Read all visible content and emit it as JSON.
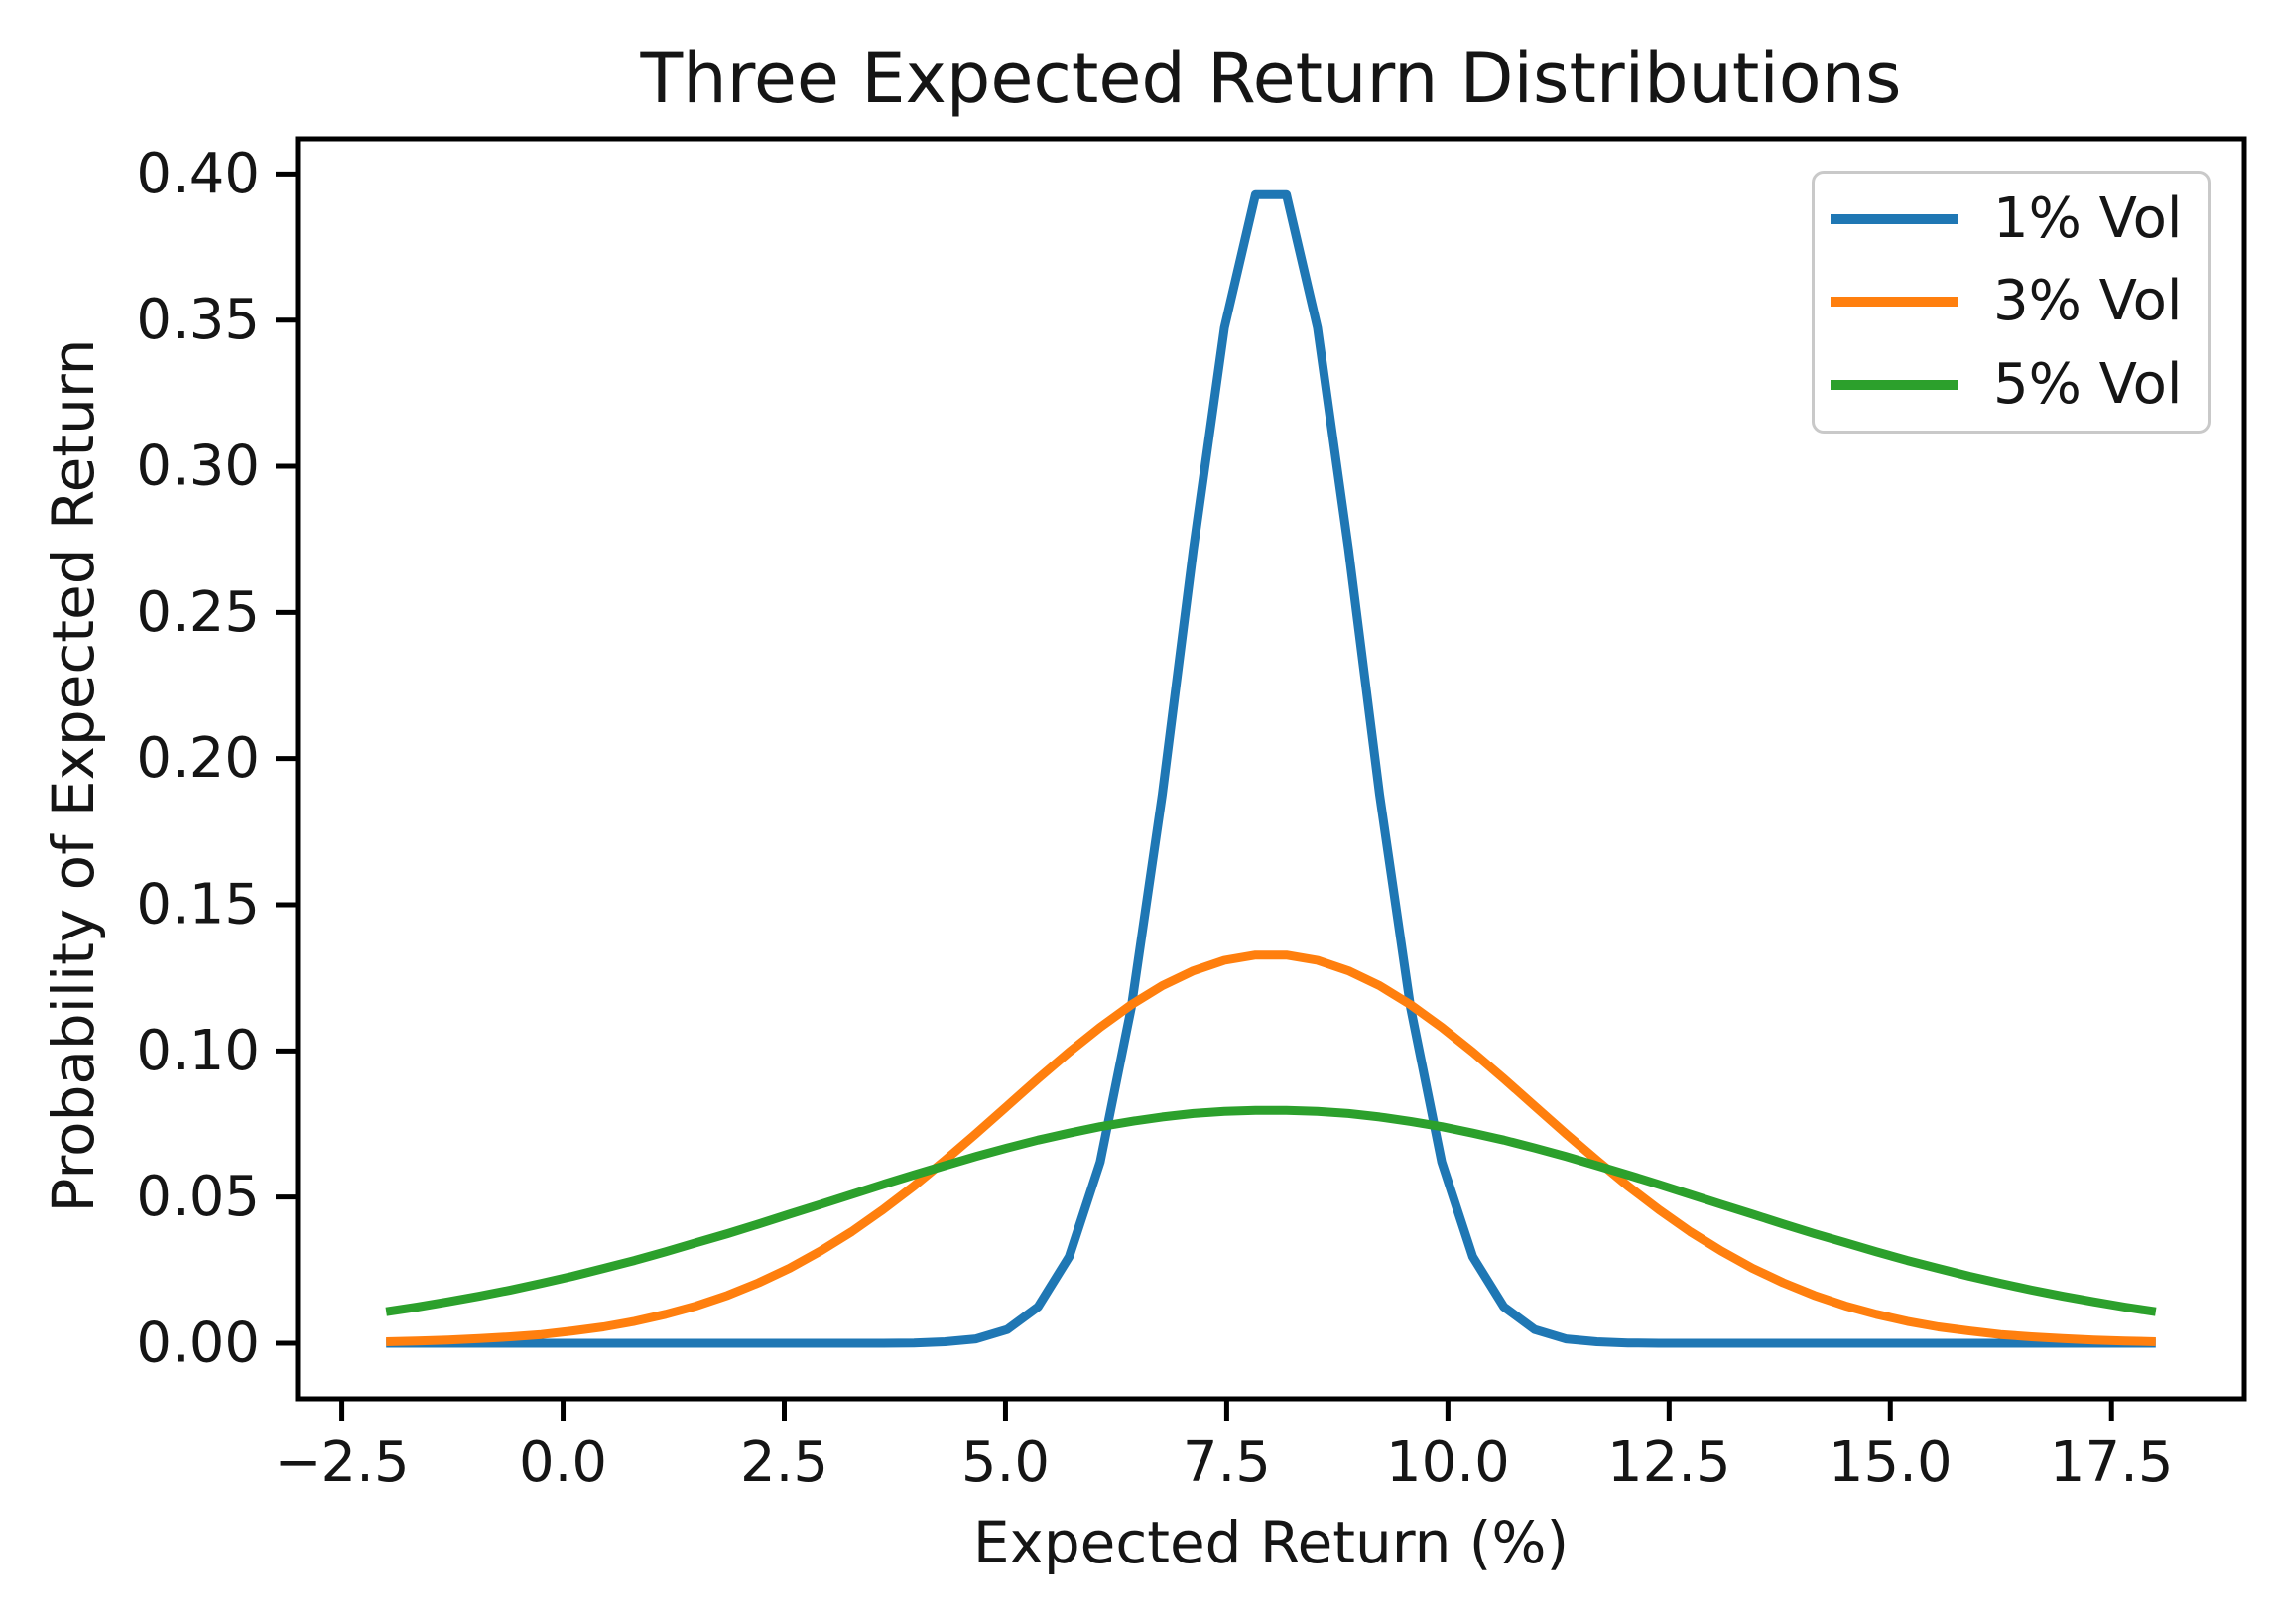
{
  "figure": {
    "background": "#ffffff",
    "text_color": "#151515",
    "axis_color": "#000000"
  },
  "chart_data": {
    "type": "line",
    "title": "Three Expected Return Distributions",
    "xlabel": "Expected Return (%)",
    "ylabel": "Probability of Expected Return",
    "xlim": [
      -3,
      19
    ],
    "ylim": [
      -0.019,
      0.412
    ],
    "grid": false,
    "legend_position": "upper right",
    "x_ticks": [
      -2.5,
      0.0,
      2.5,
      5.0,
      7.5,
      10.0,
      12.5,
      15.0,
      17.5
    ],
    "x_tick_labels": [
      "−2.5",
      "0.0",
      "2.5",
      "5.0",
      "7.5",
      "10.0",
      "12.5",
      "15.0",
      "17.5"
    ],
    "y_ticks": [
      0.0,
      0.05,
      0.1,
      0.15,
      0.2,
      0.25,
      0.3,
      0.35,
      0.4
    ],
    "y_tick_labels": [
      "0.00",
      "0.05",
      "0.10",
      "0.15",
      "0.20",
      "0.25",
      "0.30",
      "0.35",
      "0.40"
    ],
    "x": [
      -2.0,
      -1.649,
      -1.298,
      -0.947,
      -0.596,
      -0.246,
      0.105,
      0.456,
      0.807,
      1.158,
      1.509,
      1.86,
      2.211,
      2.561,
      2.912,
      3.263,
      3.614,
      3.965,
      4.316,
      4.667,
      5.018,
      5.368,
      5.719,
      6.07,
      6.421,
      6.772,
      7.123,
      7.474,
      7.825,
      8.175,
      8.526,
      8.877,
      9.228,
      9.579,
      9.93,
      10.281,
      10.632,
      10.982,
      11.333,
      11.684,
      12.035,
      12.386,
      12.737,
      13.088,
      13.439,
      13.789,
      14.14,
      14.491,
      14.842,
      15.193,
      15.544,
      15.895,
      16.246,
      16.596,
      16.947,
      17.298,
      17.649,
      18.0
    ],
    "series": [
      {
        "name": "1% Vol",
        "color": "#1f77b4",
        "values": [
          0.0,
          0.0,
          0.0,
          0.0,
          0.0,
          0.0,
          0.0,
          0.0,
          0.0,
          0.0,
          0.0,
          0.0,
          0.0,
          0.0,
          0.0,
          0.0,
          0.0,
          0.0001,
          0.0005,
          0.0015,
          0.0047,
          0.0125,
          0.0296,
          0.062,
          0.1147,
          0.1877,
          0.2716,
          0.3474,
          0.3929,
          0.3929,
          0.3474,
          0.2716,
          0.1877,
          0.1147,
          0.062,
          0.0296,
          0.0125,
          0.0047,
          0.0015,
          0.0005,
          0.0001,
          0.0,
          0.0,
          0.0,
          0.0,
          0.0,
          0.0,
          0.0,
          0.0,
          0.0,
          0.0,
          0.0,
          0.0,
          0.0,
          0.0,
          0.0,
          0.0,
          0.0
        ]
      },
      {
        "name": "3% Vol",
        "color": "#ff7f0e",
        "values": [
          0.0005,
          0.0008,
          0.0011,
          0.0016,
          0.0022,
          0.003,
          0.0042,
          0.0056,
          0.0075,
          0.0099,
          0.0128,
          0.0164,
          0.0207,
          0.0257,
          0.0316,
          0.0382,
          0.0457,
          0.0538,
          0.0626,
          0.0717,
          0.0811,
          0.0905,
          0.0996,
          0.1081,
          0.1158,
          0.1223,
          0.1274,
          0.131,
          0.1328,
          0.1328,
          0.131,
          0.1274,
          0.1223,
          0.1158,
          0.1081,
          0.0996,
          0.0905,
          0.0811,
          0.0717,
          0.0626,
          0.0538,
          0.0457,
          0.0382,
          0.0316,
          0.0257,
          0.0207,
          0.0164,
          0.0128,
          0.0099,
          0.0075,
          0.0056,
          0.0042,
          0.003,
          0.0022,
          0.0016,
          0.0011,
          0.0008,
          0.0005
        ]
      },
      {
        "name": "5% Vol",
        "color": "#2ca02c",
        "values": [
          0.0108,
          0.0124,
          0.0142,
          0.0161,
          0.0182,
          0.0205,
          0.0229,
          0.0256,
          0.0283,
          0.0313,
          0.0344,
          0.0375,
          0.0408,
          0.0442,
          0.0475,
          0.0509,
          0.0543,
          0.0576,
          0.0608,
          0.0639,
          0.0668,
          0.0695,
          0.0719,
          0.0741,
          0.0759,
          0.0774,
          0.0786,
          0.0793,
          0.0797,
          0.0797,
          0.0793,
          0.0786,
          0.0774,
          0.0759,
          0.0741,
          0.0719,
          0.0695,
          0.0668,
          0.0639,
          0.0608,
          0.0576,
          0.0543,
          0.0509,
          0.0475,
          0.0442,
          0.0408,
          0.0375,
          0.0344,
          0.0313,
          0.0283,
          0.0256,
          0.0229,
          0.0205,
          0.0182,
          0.0161,
          0.0142,
          0.0124,
          0.0108
        ]
      }
    ]
  }
}
